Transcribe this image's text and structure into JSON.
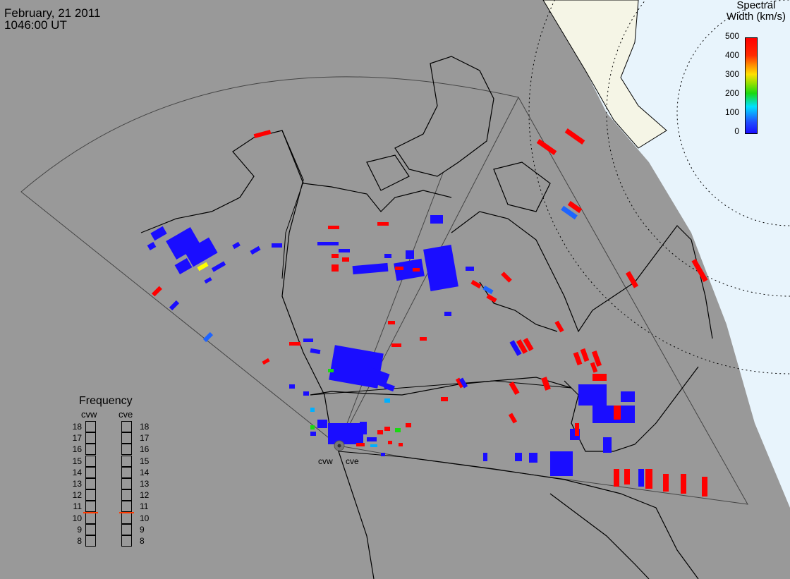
{
  "header": {
    "date": "February, 21 2011",
    "time": "1046:00 UT"
  },
  "colorbar": {
    "title_line1": "Spectral",
    "title_line2": "Width (km/s)",
    "ticks": [
      "500",
      "400",
      "300",
      "200",
      "100",
      "0"
    ]
  },
  "frequency_panel": {
    "title": "Frequency",
    "radars": [
      {
        "name": "cvw",
        "current_mhz": 11
      },
      {
        "name": "cve",
        "current_mhz": 11
      }
    ],
    "scale": [
      "18",
      "17",
      "16",
      "15",
      "14",
      "13",
      "12",
      "11",
      "10",
      "9",
      "8"
    ]
  },
  "sites": {
    "west": "cvw",
    "east": "cve"
  },
  "colors": {
    "background": "#999999",
    "ocean_polar": "#e8f4fc",
    "ice": "#f5f5e6",
    "high": "#ff0000",
    "low": "#1a0dff"
  },
  "echo_colors": {
    "R": "#ff0000",
    "B": "#1a0dff",
    "L": "#1e64ff",
    "Y": "#ffff00",
    "G": "#19d911",
    "C": "#00b0ff"
  }
}
